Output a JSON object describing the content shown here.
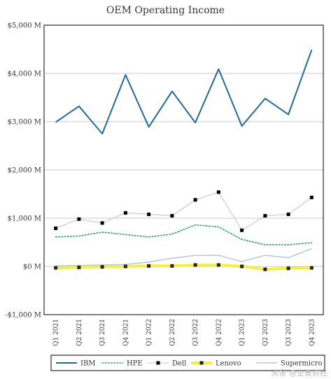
{
  "watermark": "头条 @全景财经",
  "colors": {
    "IBM": "#1f6b9b",
    "HPE": "#2ea563",
    "Dell": "#d6d6d6",
    "Dell_marker": "#000000",
    "Lenovo": "#f7f03a",
    "Lenovo_marker": "#222222",
    "Supermicro": "#b6c8e3",
    "grid": "#c8c8c8",
    "frame": "#000000"
  },
  "chart_data": {
    "type": "line",
    "title": "OEM Operating Income",
    "xlabel": "",
    "ylabel": "",
    "categories": [
      "Q1 2021",
      "Q2 2021",
      "Q3 2021",
      "Q4 2021",
      "Q1 2022",
      "Q2 2022",
      "Q3 2022",
      "Q4 2022",
      "Q1 2023",
      "Q2 2023",
      "Q3 2023",
      "Q4 2023"
    ],
    "ylim": [
      -1000,
      5000
    ],
    "yticks": [
      5000,
      4000,
      3000,
      2000,
      1000,
      0,
      -1000
    ],
    "ytick_labels": [
      "$5,000 M",
      "$4,000 M",
      "$3,000 M",
      "$2,000 M",
      "$1,000 M",
      "$0 M",
      "-$1,000 M"
    ],
    "grid": "horizontal",
    "legend_position": "bottom",
    "series": [
      {
        "name": "IBM",
        "values": [
          2990,
          3320,
          2750,
          3970,
          2890,
          3630,
          2980,
          4090,
          2910,
          3480,
          3150,
          4490
        ]
      },
      {
        "name": "HPE",
        "values": [
          610,
          630,
          710,
          660,
          610,
          670,
          860,
          820,
          560,
          450,
          450,
          490
        ]
      },
      {
        "name": "Dell",
        "values": [
          790,
          980,
          900,
          1110,
          1080,
          1050,
          1380,
          1540,
          750,
          1050,
          1080,
          1430
        ]
      },
      {
        "name": "Lenovo",
        "values": [
          -30,
          -20,
          -10,
          0,
          10,
          10,
          30,
          30,
          0,
          -60,
          -40,
          -30
        ]
      },
      {
        "name": "Supermicro",
        "values": [
          10,
          20,
          30,
          40,
          90,
          170,
          230,
          230,
          100,
          230,
          180,
          370
        ]
      }
    ]
  }
}
